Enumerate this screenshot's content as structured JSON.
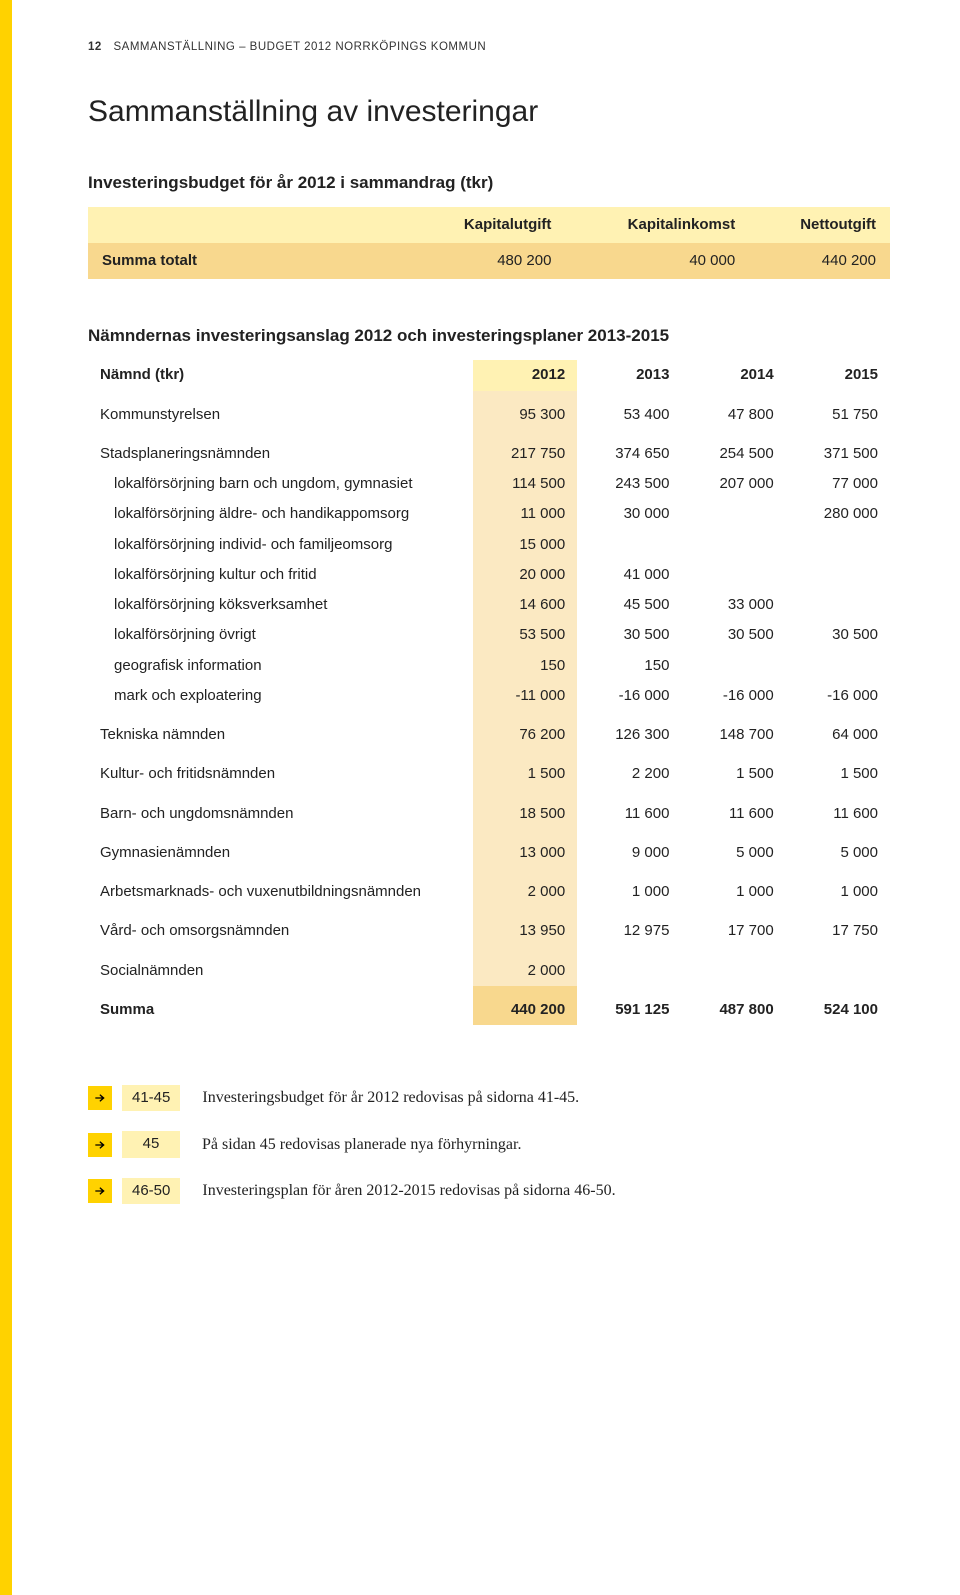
{
  "header": {
    "page_number": "12",
    "running": "SAMMANSTÄLLNING – BUDGET 2012 NORRKÖPINGS KOMMUN"
  },
  "title": "Sammanställning av investeringar",
  "summary": {
    "heading": "Investeringsbudget för år 2012 i sammandrag (tkr)",
    "cols": [
      "Kapitalutgift",
      "Kapitalinkomst",
      "Nettoutgift"
    ],
    "row_label": "Summa totalt",
    "row_values": [
      "480 200",
      "40 000",
      "440 200"
    ]
  },
  "main": {
    "heading": "Nämndernas investeringsanslag 2012 och investeringsplaner 2013-2015",
    "stub_head": "Nämnd (tkr)",
    "years": [
      "2012",
      "2013",
      "2014",
      "2015"
    ],
    "rows": [
      {
        "type": "section",
        "label": "Kommunstyrelsen",
        "v": [
          "95 300",
          "53 400",
          "47 800",
          "51 750"
        ]
      },
      {
        "type": "section",
        "label": "Stadsplaneringsnämnden",
        "v": [
          "217 750",
          "374 650",
          "254 500",
          "371 500"
        ]
      },
      {
        "type": "sub",
        "label": "lokalförsörjning barn och ungdom, gymnasiet",
        "v": [
          "114 500",
          "243 500",
          "207 000",
          "77 000"
        ]
      },
      {
        "type": "sub",
        "label": "lokalförsörjning äldre- och handikappomsorg",
        "v": [
          "11 000",
          "30 000",
          "",
          "280 000"
        ]
      },
      {
        "type": "sub",
        "label": "lokalförsörjning individ- och familjeomsorg",
        "v": [
          "15 000",
          "",
          "",
          ""
        ]
      },
      {
        "type": "sub",
        "label": "lokalförsörjning kultur och fritid",
        "v": [
          "20 000",
          "41 000",
          "",
          ""
        ]
      },
      {
        "type": "sub",
        "label": "lokalförsörjning köksverksamhet",
        "v": [
          "14 600",
          "45 500",
          "33 000",
          ""
        ]
      },
      {
        "type": "sub",
        "label": "lokalförsörjning övrigt",
        "v": [
          "53 500",
          "30 500",
          "30 500",
          "30 500"
        ]
      },
      {
        "type": "sub",
        "label": "geografisk information",
        "v": [
          "150",
          "150",
          "",
          ""
        ]
      },
      {
        "type": "sub",
        "label": "mark och exploatering",
        "v": [
          "-11 000",
          "-16 000",
          "-16 000",
          "-16 000"
        ]
      },
      {
        "type": "section",
        "label": "Tekniska nämnden",
        "v": [
          "76 200",
          "126 300",
          "148 700",
          "64 000"
        ]
      },
      {
        "type": "section",
        "label": "Kultur- och fritidsnämnden",
        "v": [
          "1 500",
          "2 200",
          "1 500",
          "1 500"
        ]
      },
      {
        "type": "section",
        "label": "Barn- och ungdomsnämnden",
        "v": [
          "18 500",
          "11 600",
          "11 600",
          "11 600"
        ]
      },
      {
        "type": "section",
        "label": "Gymnasienämnden",
        "v": [
          "13 000",
          "9 000",
          "5 000",
          "5 000"
        ]
      },
      {
        "type": "section",
        "label": "Arbetsmarknads- och vuxenutbildningsnämnden",
        "v": [
          "2 000",
          "1 000",
          "1 000",
          "1 000"
        ]
      },
      {
        "type": "section",
        "label": "Vård- och omsorgsnämnden",
        "v": [
          "13 950",
          "12 975",
          "17 700",
          "17 750"
        ]
      },
      {
        "type": "section",
        "label": "Socialnämnden",
        "v": [
          "2 000",
          "",
          "",
          ""
        ]
      }
    ],
    "summa": {
      "label": "Summa",
      "v": [
        "440 200",
        "591 125",
        "487 800",
        "524 100"
      ]
    }
  },
  "refs": [
    {
      "pages": "41-45",
      "text": "Investeringsbudget för år 2012 redovisas på sidorna 41-45."
    },
    {
      "pages": "45",
      "text": "På sidan 45 redovisas planerade nya förhyrningar."
    },
    {
      "pages": "46-50",
      "text": "Investeringsplan för åren 2012-2015 redovisas på sidorna 46-50."
    }
  ],
  "colors": {
    "accent_yellow": "#ffd200",
    "pale_yellow": "#fff2b3",
    "light_beige": "#fbe9c2",
    "medium_beige": "#f8d88e",
    "text": "#222222",
    "background": "#ffffff"
  }
}
